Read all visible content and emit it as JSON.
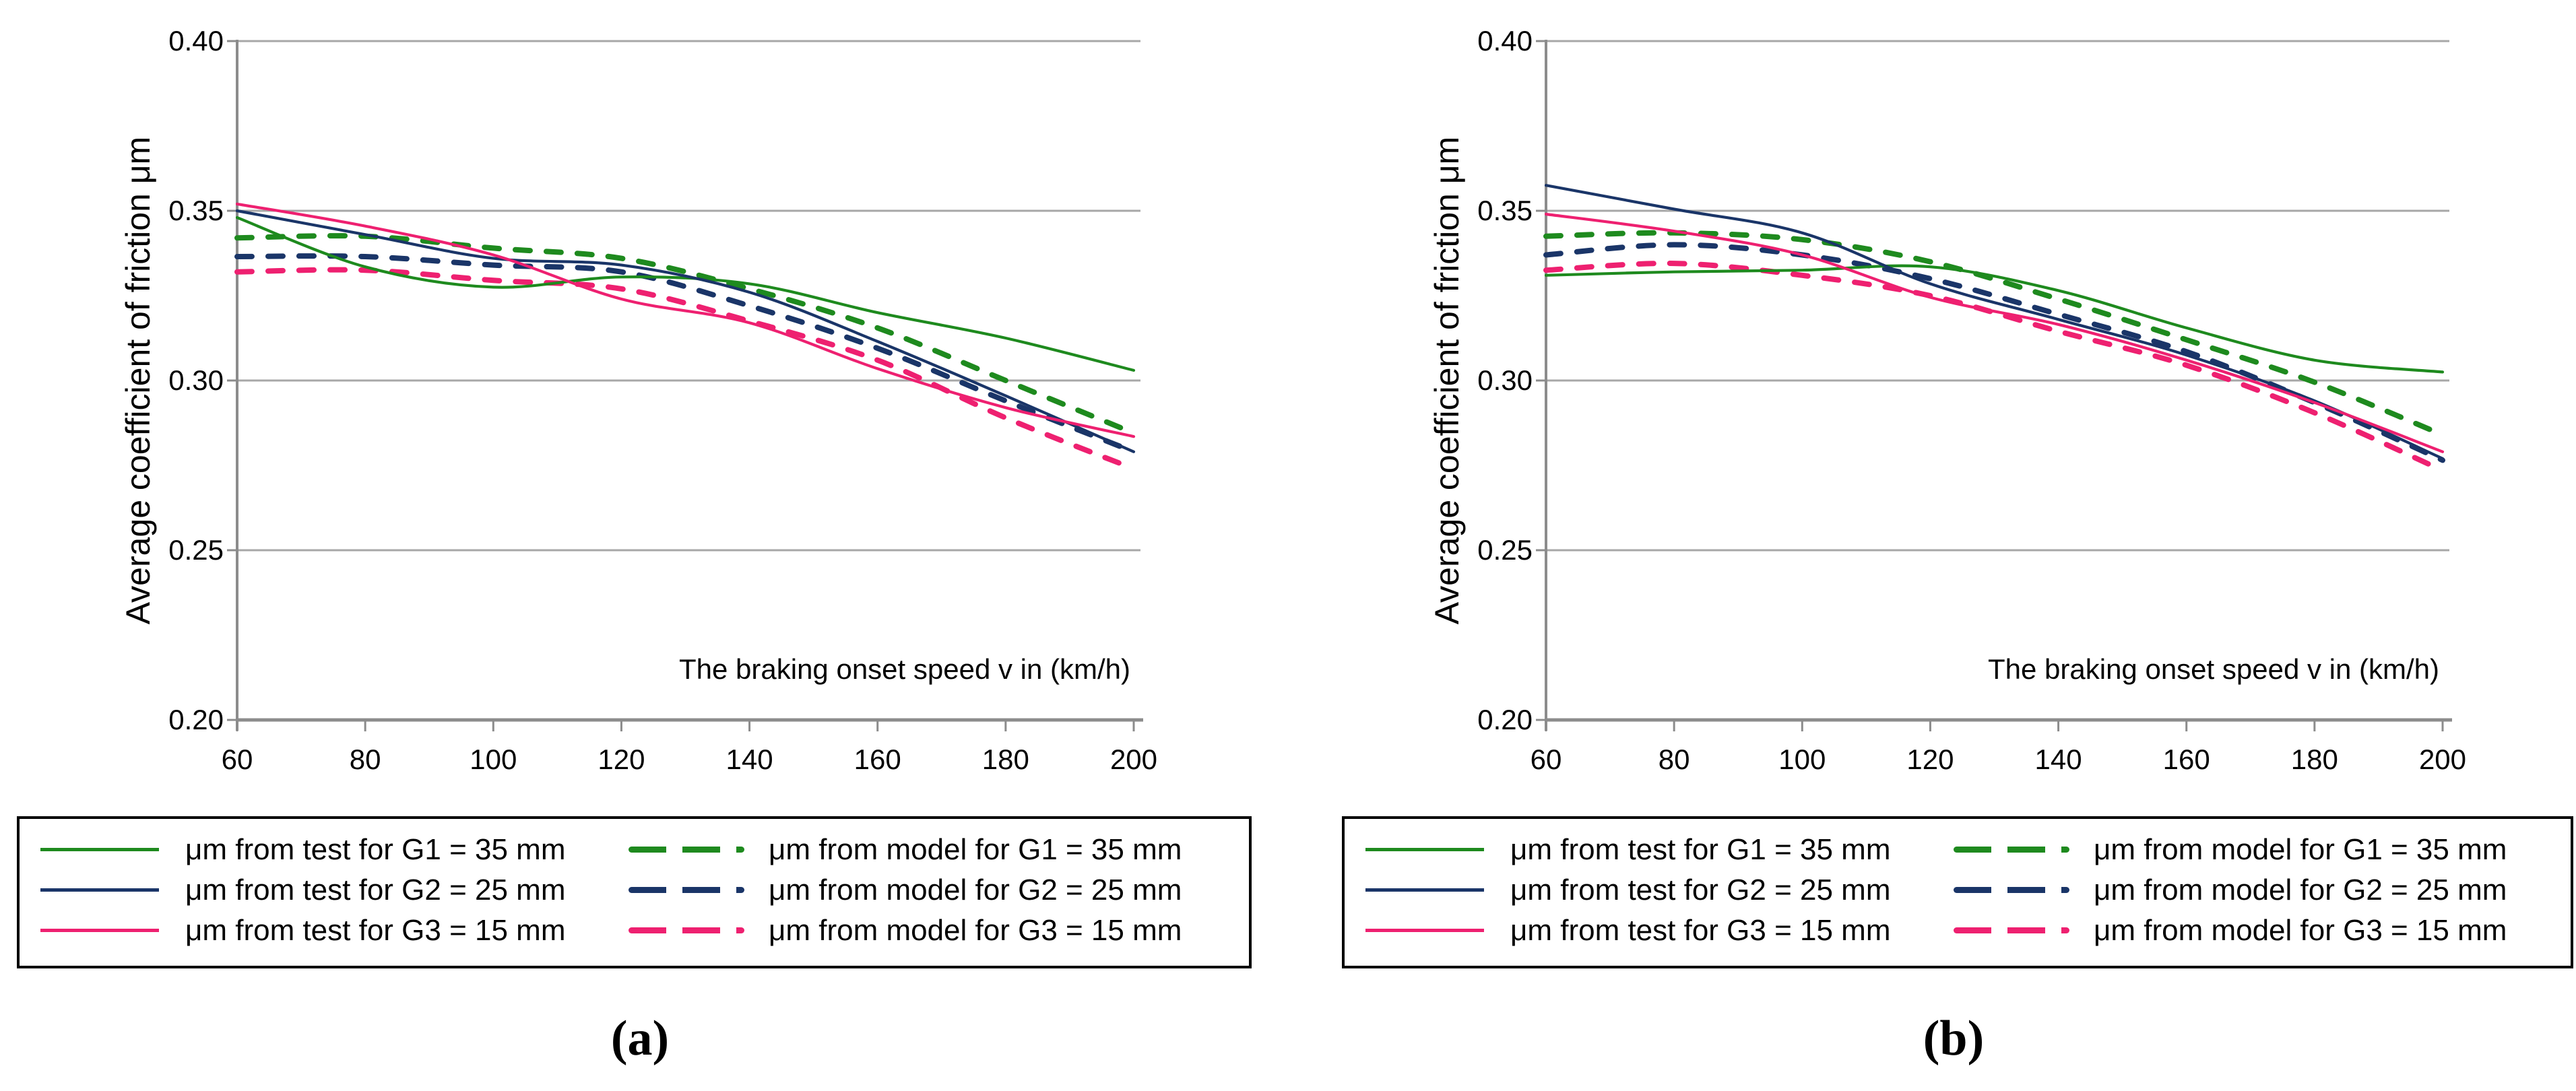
{
  "figure": {
    "background": "#ffffff",
    "grid_color": "#a7a7a7",
    "axis_color": "#8c8c8c",
    "text_color": "#000000"
  },
  "chart_data": [
    {
      "type": "line",
      "panel": "a",
      "caption": "(a)",
      "ylabel": "Average coefficient of friction μm",
      "xlabel": "The braking onset speed v in (km/h)",
      "xlim": [
        60,
        200
      ],
      "ylim": [
        0.2,
        0.4
      ],
      "x_ticks": [
        60,
        80,
        100,
        120,
        140,
        160,
        180,
        200
      ],
      "y_ticks": [
        0.4,
        0.35,
        0.3,
        0.25,
        0.2
      ],
      "y_tick_labels": [
        "0.40",
        "0.35",
        "0.30",
        "0.25",
        "0.20"
      ],
      "grid": "horizontal",
      "legend_position": "below",
      "x": [
        60,
        80,
        100,
        120,
        140,
        160,
        180,
        200
      ],
      "series": [
        {
          "name": "μm from test for G1 = 35 mm",
          "role": "test",
          "line": "solid",
          "color": "#1e8a1e",
          "values": [
            0.348,
            0.3335,
            0.3275,
            0.3305,
            0.3285,
            0.32,
            0.3125,
            0.303
          ]
        },
        {
          "name": "μm from test for G2 = 25 mm",
          "role": "test",
          "line": "solid",
          "color": "#1a3568",
          "values": [
            0.35,
            0.343,
            0.336,
            0.334,
            0.326,
            0.3115,
            0.2955,
            0.279
          ]
        },
        {
          "name": "μm from test for G3 = 15 mm",
          "role": "test",
          "line": "solid",
          "color": "#ee2070",
          "values": [
            0.352,
            0.3455,
            0.337,
            0.324,
            0.317,
            0.3035,
            0.292,
            0.2835
          ]
        },
        {
          "name": "μm from model for G1 = 35 mm",
          "role": "model",
          "line": "dashed",
          "color": "#1e8a1e",
          "values": [
            0.342,
            0.3425,
            0.339,
            0.336,
            0.327,
            0.3155,
            0.3,
            0.2845
          ]
        },
        {
          "name": "μm from model for G2 = 25 mm",
          "role": "model",
          "line": "dashed",
          "color": "#1a3568",
          "values": [
            0.3365,
            0.3365,
            0.334,
            0.332,
            0.322,
            0.3095,
            0.294,
            0.279
          ]
        },
        {
          "name": "μm from model for G3 = 15 mm",
          "role": "model",
          "line": "dashed",
          "color": "#ee2070",
          "values": [
            0.332,
            0.3325,
            0.3295,
            0.327,
            0.3175,
            0.306,
            0.289,
            0.274
          ]
        }
      ]
    },
    {
      "type": "line",
      "panel": "b",
      "caption": "(b)",
      "ylabel": "Average coefficient of friction μm",
      "xlabel": "The braking onset speed v in (km/h)",
      "xlim": [
        60,
        200
      ],
      "ylim": [
        0.2,
        0.4
      ],
      "x_ticks": [
        60,
        80,
        100,
        120,
        140,
        160,
        180,
        200
      ],
      "y_ticks": [
        0.4,
        0.35,
        0.3,
        0.25,
        0.2
      ],
      "y_tick_labels": [
        "0.40",
        "0.35",
        "0.30",
        "0.25",
        "0.20"
      ],
      "grid": "horizontal",
      "legend_position": "below",
      "x": [
        60,
        80,
        100,
        120,
        140,
        160,
        180,
        200
      ],
      "series": [
        {
          "name": "μm from test for G1 = 35 mm",
          "role": "test",
          "line": "solid",
          "color": "#1e8a1e",
          "values": [
            0.331,
            0.332,
            0.3325,
            0.3335,
            0.3265,
            0.3155,
            0.306,
            0.3025
          ]
        },
        {
          "name": "μm from test for G2 = 25 mm",
          "role": "test",
          "line": "solid",
          "color": "#1a3568",
          "values": [
            0.3575,
            0.3505,
            0.3435,
            0.3285,
            0.318,
            0.3075,
            0.294,
            0.277
          ]
        },
        {
          "name": "μm from test for G3 = 15 mm",
          "role": "test",
          "line": "solid",
          "color": "#ee2070",
          "values": [
            0.349,
            0.344,
            0.337,
            0.3245,
            0.3165,
            0.306,
            0.2935,
            0.279
          ]
        },
        {
          "name": "μm from model for G1 = 35 mm",
          "role": "model",
          "line": "dashed",
          "color": "#1e8a1e",
          "values": [
            0.3425,
            0.3435,
            0.3415,
            0.335,
            0.324,
            0.312,
            0.2995,
            0.284
          ]
        },
        {
          "name": "μm from model for G2 = 25 mm",
          "role": "model",
          "line": "dashed",
          "color": "#1a3568",
          "values": [
            0.337,
            0.34,
            0.337,
            0.33,
            0.3195,
            0.3085,
            0.2935,
            0.2765
          ]
        },
        {
          "name": "μm from model for G3 = 15 mm",
          "role": "model",
          "line": "dashed",
          "color": "#ee2070",
          "values": [
            0.3325,
            0.3345,
            0.331,
            0.325,
            0.3145,
            0.3045,
            0.2905,
            0.2735
          ]
        }
      ]
    }
  ]
}
